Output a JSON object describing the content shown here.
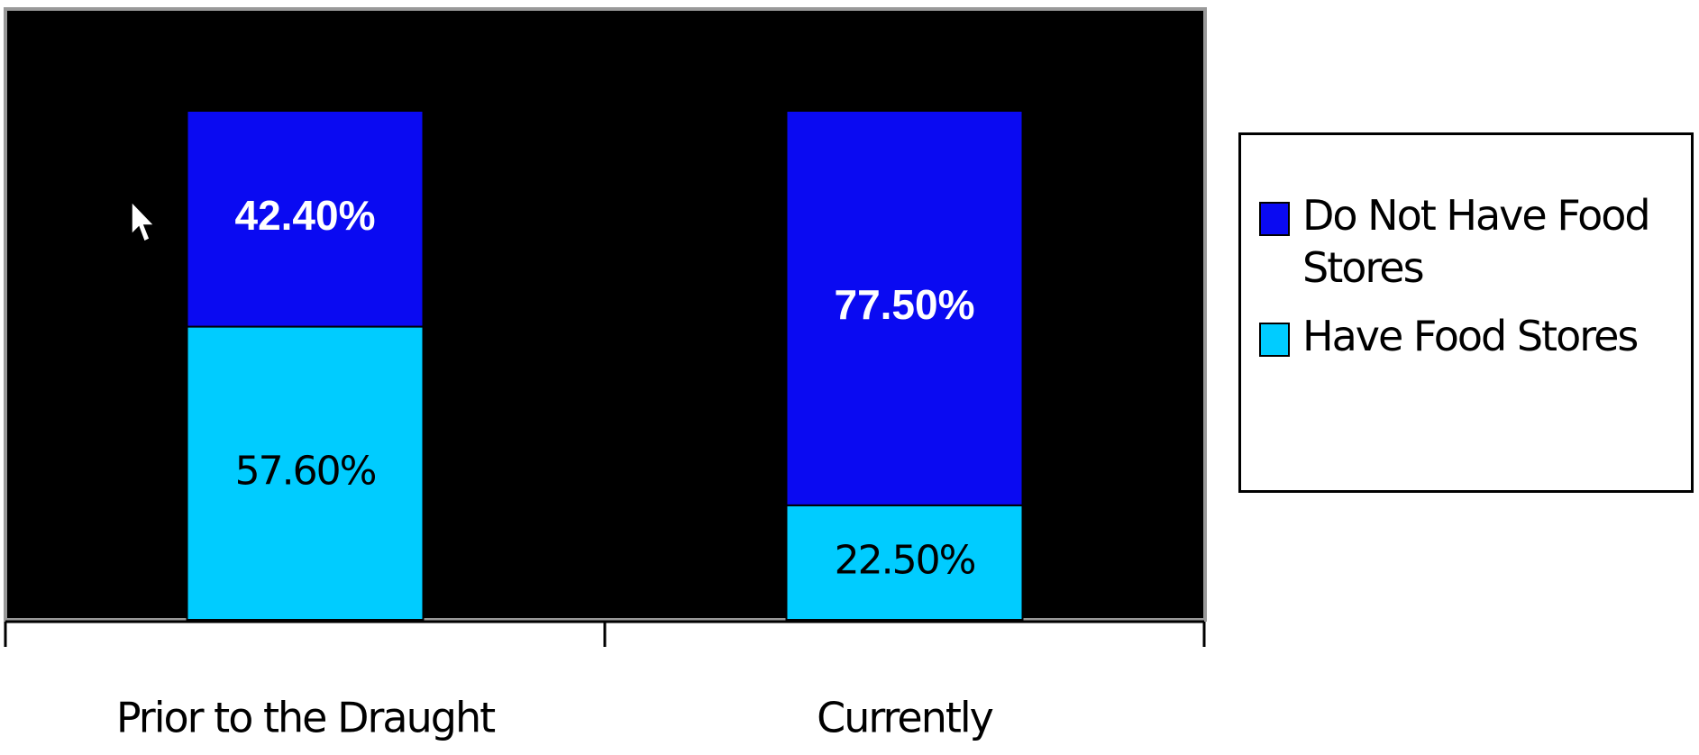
{
  "chart_data": {
    "type": "stacked_bar",
    "categories": [
      "Prior to the Draught",
      "Currently"
    ],
    "series": [
      {
        "name": "Do Not Have Food Stores",
        "color": "#0a0af2",
        "values": [
          42.4,
          77.5
        ],
        "value_labels": [
          "42.40%",
          "77.50%"
        ]
      },
      {
        "name": "Have Food Stores",
        "color": "#00ccff",
        "values": [
          57.6,
          22.5
        ],
        "value_labels": [
          "57.60%",
          "22.50%"
        ]
      }
    ],
    "ylim": [
      0,
      120
    ],
    "legend": "right"
  }
}
